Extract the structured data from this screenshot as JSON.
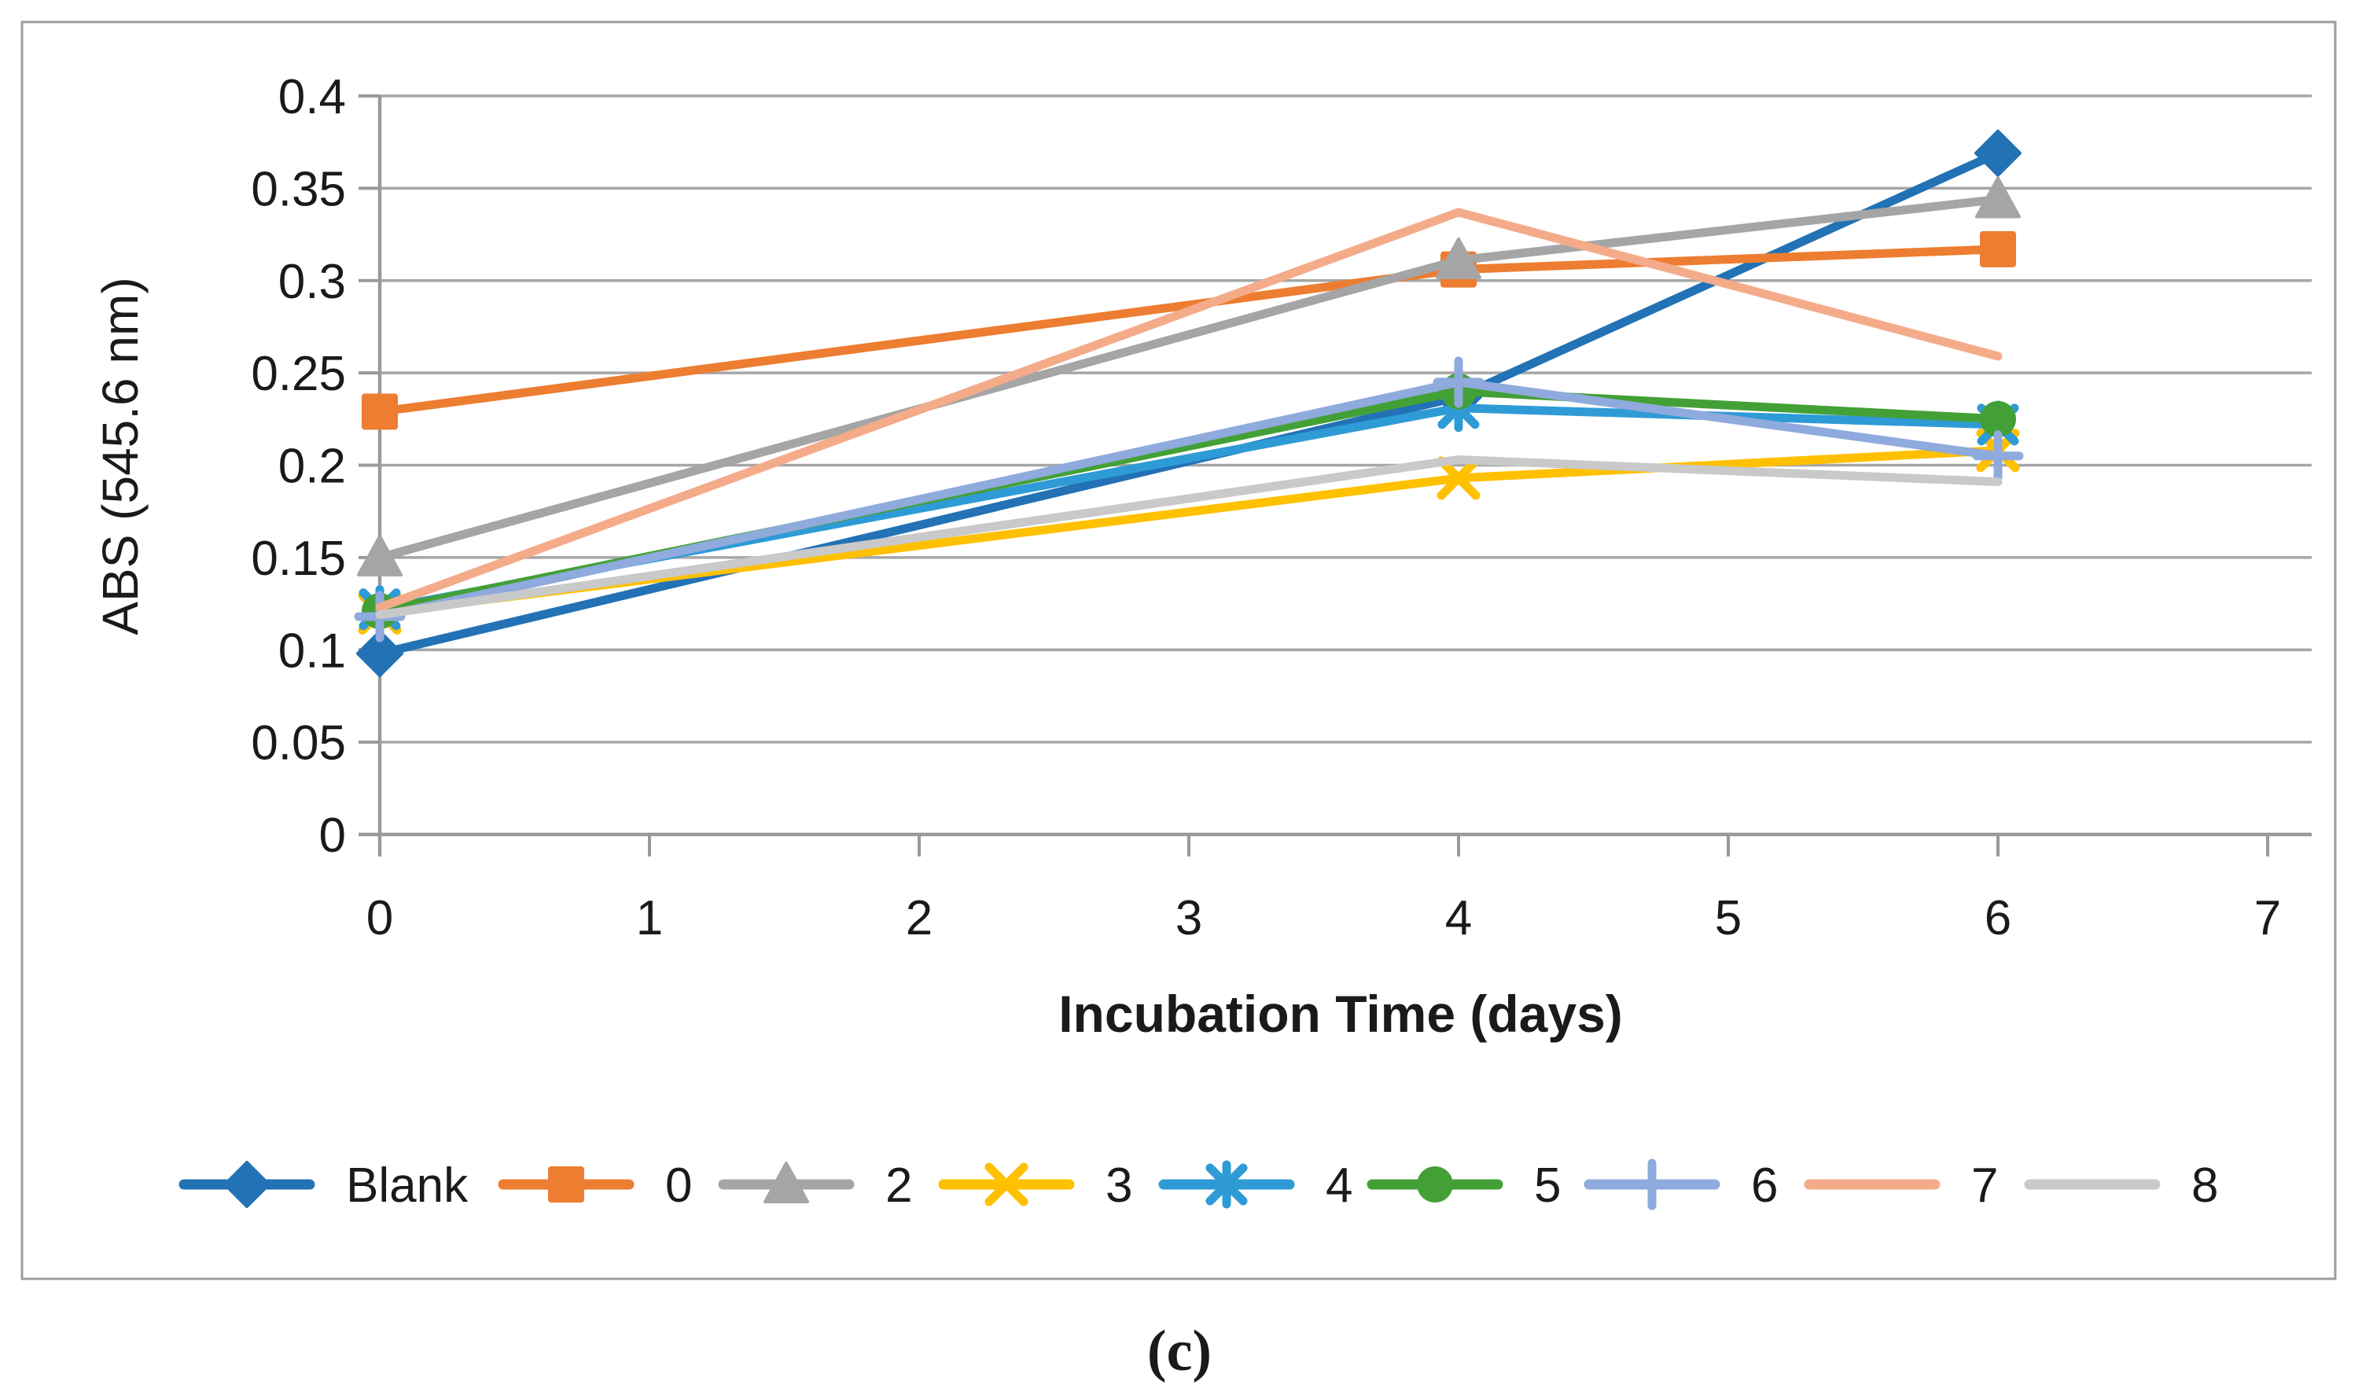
{
  "figure": {
    "caption": "(c)"
  },
  "colors": {
    "background": "#ffffff",
    "border": "#9e9e9e",
    "grid": "#a6a6a6",
    "axis": "#999999",
    "text": "#1a1a1a"
  },
  "chart_data": {
    "type": "line",
    "title": "",
    "xlabel": "Incubation Time (days)",
    "ylabel": "ABS (545.6 nm)",
    "x": [
      0,
      4,
      6
    ],
    "xlim": [
      0,
      7
    ],
    "ylim": [
      0,
      0.4
    ],
    "grid": true,
    "legend_position": "bottom",
    "x_ticks": [
      "0",
      "1",
      "2",
      "3",
      "4",
      "5",
      "6",
      "7"
    ],
    "y_ticks": [
      "0",
      "0.05",
      "0.1",
      "0.15",
      "0.2",
      "0.25",
      "0.3",
      "0.35",
      "0.4"
    ],
    "series": [
      {
        "name": "Blank",
        "color": "#2272b5",
        "marker": "diamond",
        "values": [
          0.098,
          0.237,
          0.369
        ]
      },
      {
        "name": "0",
        "color": "#ed7d31",
        "marker": "square",
        "values": [
          0.229,
          0.306,
          0.317
        ]
      },
      {
        "name": "2",
        "color": "#a5a5a5",
        "marker": "triangle",
        "values": [
          0.15,
          0.311,
          0.344
        ]
      },
      {
        "name": "3",
        "color": "#ffc000",
        "marker": "x",
        "values": [
          0.12,
          0.193,
          0.208
        ]
      },
      {
        "name": "4",
        "color": "#2e9bd6",
        "marker": "asterisk",
        "values": [
          0.122,
          0.231,
          0.222
        ]
      },
      {
        "name": "5",
        "color": "#43a036",
        "marker": "circle",
        "values": [
          0.121,
          0.24,
          0.225
        ]
      },
      {
        "name": "6",
        "color": "#8faadc",
        "marker": "plus",
        "values": [
          0.118,
          0.245,
          0.205
        ]
      },
      {
        "name": "7",
        "color": "#f4ab89",
        "marker": "none",
        "values": [
          0.123,
          0.337,
          0.259
        ]
      },
      {
        "name": "8",
        "color": "#c9c9c9",
        "marker": "none",
        "values": [
          0.119,
          0.203,
          0.191
        ]
      }
    ]
  }
}
